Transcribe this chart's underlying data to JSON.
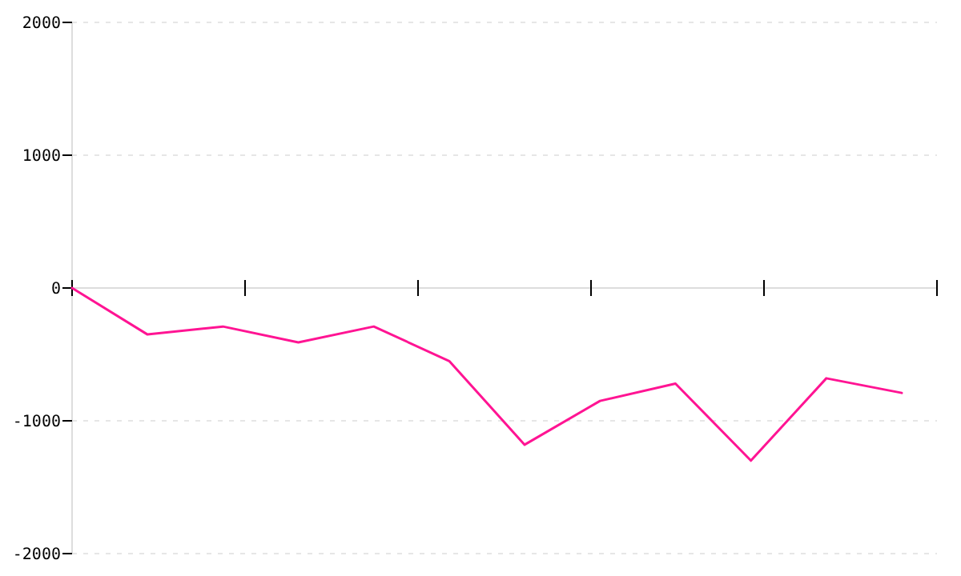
{
  "chart_data": {
    "type": "line",
    "categories": [
      null,
      null,
      null,
      null,
      null,
      null,
      null,
      null,
      null,
      null,
      null,
      null
    ],
    "series": [
      {
        "color": "#ff1493",
        "values": [
          0,
          -350,
          -290,
          -410,
          -290,
          -550,
          -1180,
          -850,
          -720,
          -1300,
          -680,
          -790
        ]
      }
    ],
    "ylim": [
      -2000,
      2000
    ],
    "yticks": [
      -2000,
      -1000,
      0,
      1000,
      2000
    ],
    "grid": "y",
    "tick_labels": "y",
    "marker": "none",
    "line_style": "solid"
  }
}
